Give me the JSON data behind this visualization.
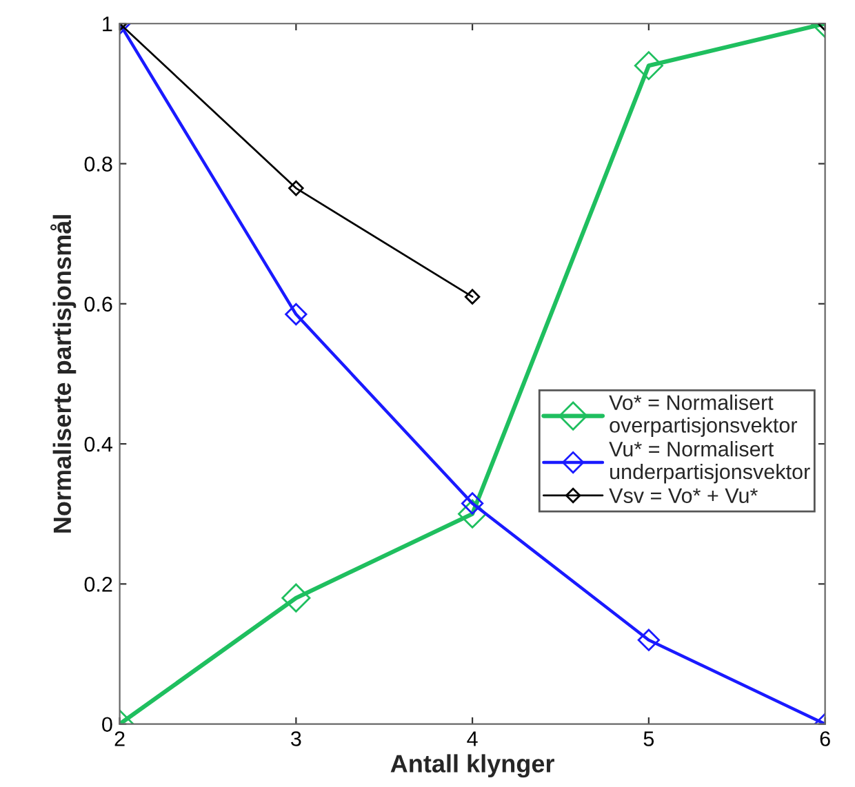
{
  "chart_data": {
    "type": "line",
    "xlabel": "Antall klynger",
    "ylabel": "Normaliserte partisjonsmål",
    "x": [
      2,
      3,
      4,
      5,
      6
    ],
    "series": [
      {
        "name": "Vo* = Normalisert\noverpartisjonsvektor",
        "color": "#1fbf5f",
        "values": [
          0,
          0.18,
          0.3,
          0.94,
          1
        ]
      },
      {
        "name": "Vu* = Normalisert\nunderpartisjonsvektor",
        "color": "#1a1aff",
        "values": [
          1,
          0.585,
          0.315,
          0.12,
          0
        ]
      },
      {
        "name": "Vsv = Vo* + Vu*",
        "color": "#000000",
        "values": [
          1,
          0.765,
          0.61,
          null,
          1
        ]
      }
    ],
    "xlim": [
      2,
      6
    ],
    "ylim": [
      0,
      1
    ],
    "xticks": [
      2,
      3,
      4,
      5,
      6
    ],
    "yticks": [
      0,
      0.2,
      0.4,
      0.6,
      0.8,
      1
    ],
    "grid": false,
    "legend": "right",
    "marker": "diamond",
    "line_style": "solid"
  }
}
